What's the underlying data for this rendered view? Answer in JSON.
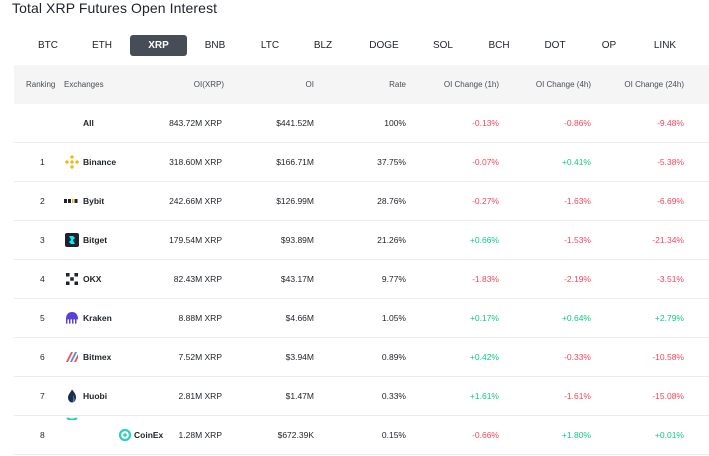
{
  "page_title": "Total XRP Futures Open Interest",
  "tabs": [
    "BTC",
    "ETH",
    "XRP",
    "BNB",
    "LTC",
    "BLZ",
    "DOGE",
    "SOL",
    "BCH",
    "DOT",
    "OP",
    "LINK"
  ],
  "active_tab": "XRP",
  "colors": {
    "negative": "#f6465d",
    "positive": "#0ecb81",
    "active_tab_bg": "#474d57"
  },
  "headers": {
    "ranking": "Ranking",
    "exchanges": "Exchanges",
    "oi_xrp": "OI(XRP)",
    "oi": "OI",
    "rate": "Rate",
    "ch1h": "OI Change (1h)",
    "ch4h": "OI Change (4h)",
    "ch24h": "OI Change (24h)"
  },
  "rows": [
    {
      "rank": "",
      "exchange": "All",
      "logo": "",
      "oi_xrp": "843.72M XRP",
      "oi": "$441.52M",
      "rate": "100%",
      "ch1h": "-0.13%",
      "ch4h": "-0.86%",
      "ch24h": "-9.48%"
    },
    {
      "rank": "1",
      "exchange": "Binance",
      "logo": "binance-icon",
      "oi_xrp": "318.60M XRP",
      "oi": "$166.71M",
      "rate": "37.75%",
      "ch1h": "-0.07%",
      "ch4h": "+0.41%",
      "ch24h": "-5.38%"
    },
    {
      "rank": "2",
      "exchange": "Bybit",
      "logo": "bybit-icon",
      "oi_xrp": "242.66M XRP",
      "oi": "$126.99M",
      "rate": "28.76%",
      "ch1h": "-0.27%",
      "ch4h": "-1.63%",
      "ch24h": "-6.69%"
    },
    {
      "rank": "3",
      "exchange": "Bitget",
      "logo": "bitget-icon",
      "oi_xrp": "179.54M XRP",
      "oi": "$93.89M",
      "rate": "21.26%",
      "ch1h": "+0.66%",
      "ch4h": "-1.53%",
      "ch24h": "-21.34%"
    },
    {
      "rank": "4",
      "exchange": "OKX",
      "logo": "okx-icon",
      "oi_xrp": "82.43M XRP",
      "oi": "$43.17M",
      "rate": "9.77%",
      "ch1h": "-1.83%",
      "ch4h": "-2.19%",
      "ch24h": "-3.51%"
    },
    {
      "rank": "5",
      "exchange": "Kraken",
      "logo": "kraken-icon",
      "oi_xrp": "8.88M XRP",
      "oi": "$4.66M",
      "rate": "1.05%",
      "ch1h": "+0.17%",
      "ch4h": "+0.64%",
      "ch24h": "+2.79%"
    },
    {
      "rank": "6",
      "exchange": "Bitmex",
      "logo": "bitmex-icon",
      "oi_xrp": "7.52M XRP",
      "oi": "$3.94M",
      "rate": "0.89%",
      "ch1h": "+0.42%",
      "ch4h": "-0.33%",
      "ch24h": "-10.58%"
    },
    {
      "rank": "7",
      "exchange": "Huobi",
      "logo": "huobi-icon",
      "oi_xrp": "2.81M XRP",
      "oi": "$1.47M",
      "rate": "0.33%",
      "ch1h": "+1.61%",
      "ch4h": "-1.61%",
      "ch24h": "-15.08%"
    },
    {
      "rank": "8",
      "exchange": "CoinEx",
      "logo": "coinex-icon",
      "oi_xrp": "1.28M XRP",
      "oi": "$672.39K",
      "rate": "0.15%",
      "ch1h": "-0.66%",
      "ch4h": "+1.80%",
      "ch24h": "+0.01%"
    }
  ]
}
